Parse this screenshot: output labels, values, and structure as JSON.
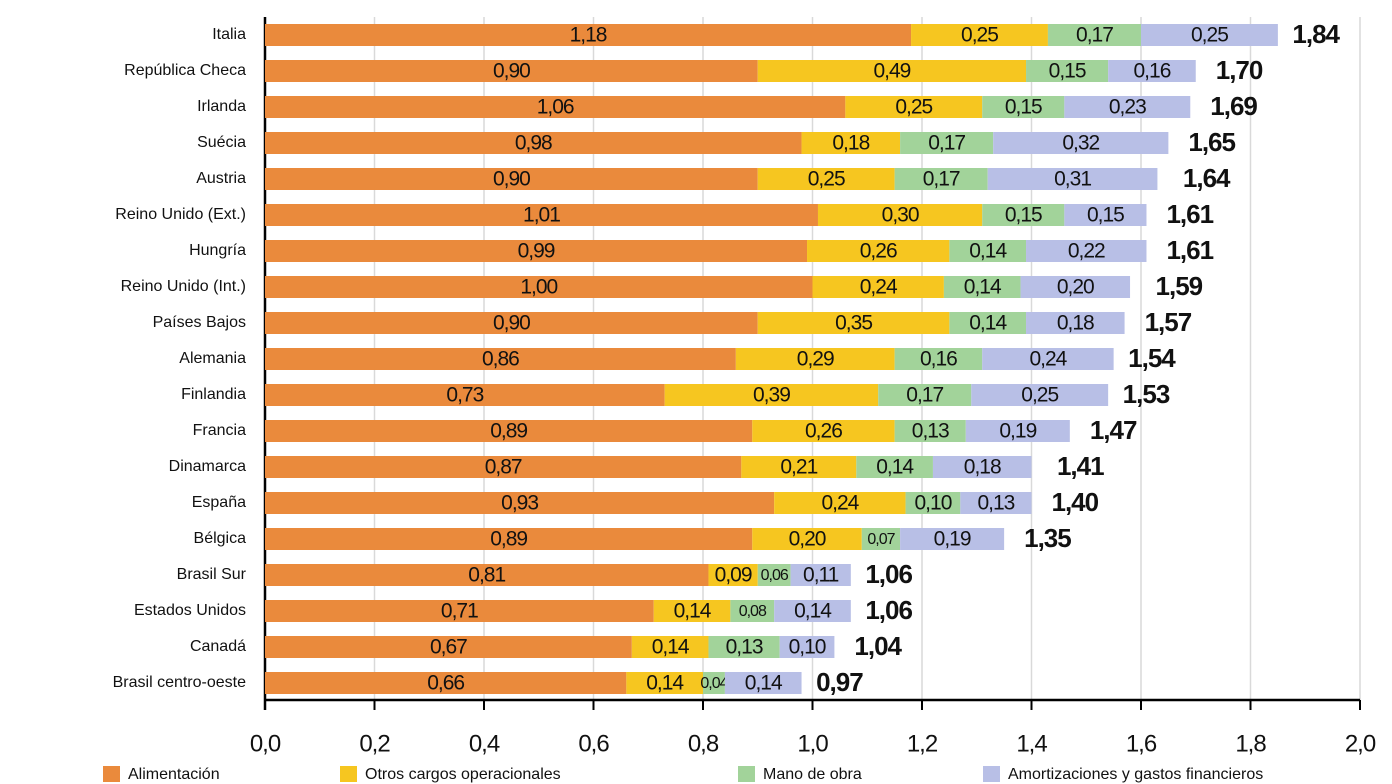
{
  "chart_data": {
    "type": "stacked-barh",
    "categories": [
      "Italia",
      "República Checa",
      "Irlanda",
      "Suécia",
      "Austria",
      "Reino Unido (Ext.)",
      "Hungría",
      "Reino Unido (Int.)",
      "Países Bajos",
      "Alemania",
      "Finlandia",
      "Francia",
      "Dinamarca",
      "España",
      "Bélgica",
      "Brasil Sur",
      "Estados Unidos",
      "Canadá",
      "Brasil centro-oeste"
    ],
    "series": [
      {
        "name": "Alimentación",
        "color": "#ea8a3c",
        "values": [
          1.18,
          0.9,
          1.06,
          0.98,
          0.9,
          1.01,
          0.99,
          1.0,
          0.9,
          0.86,
          0.73,
          0.89,
          0.87,
          0.93,
          0.89,
          0.81,
          0.71,
          0.67,
          0.66
        ],
        "value_labels": [
          "1,18",
          "0,90",
          "1,06",
          "0,98",
          "0,90",
          "1,01",
          "0,99",
          "1,00",
          "0,90",
          "0,86",
          "0,73",
          "0,89",
          "0,87",
          "0,93",
          "0,89",
          "0,81",
          "0,71",
          "0,67",
          "0,66"
        ]
      },
      {
        "name": "Otros cargos operacionales",
        "color": "#f6c620",
        "values": [
          0.25,
          0.49,
          0.25,
          0.18,
          0.25,
          0.3,
          0.26,
          0.24,
          0.35,
          0.29,
          0.39,
          0.26,
          0.21,
          0.24,
          0.2,
          0.09,
          0.14,
          0.14,
          0.14
        ],
        "value_labels": [
          "0,25",
          "0,49",
          "0,25",
          "0,18",
          "0,25",
          "0,30",
          "0,26",
          "0,24",
          "0,35",
          "0,29",
          "0,39",
          "0,26",
          "0,21",
          "0,24",
          "0,20",
          "0,09",
          "0,14",
          "0,14",
          "0,14"
        ]
      },
      {
        "name": "Mano de obra",
        "color": "#a2d39a",
        "values": [
          0.17,
          0.15,
          0.15,
          0.17,
          0.17,
          0.15,
          0.14,
          0.14,
          0.14,
          0.16,
          0.17,
          0.13,
          0.14,
          0.1,
          0.07,
          0.06,
          0.08,
          0.13,
          0.04
        ],
        "value_labels": [
          "0,17",
          "0,15",
          "0,15",
          "0,17",
          "0,17",
          "0,15",
          "0,14",
          "0,14",
          "0,14",
          "0,16",
          "0,17",
          "0,13",
          "0,14",
          "0,10",
          "0,07",
          "0,06",
          "0,08",
          "0,13",
          "0,04"
        ]
      },
      {
        "name": "Amortizaciones y gastos financieros",
        "color": "#b8bfe6",
        "values": [
          0.25,
          0.16,
          0.23,
          0.32,
          0.31,
          0.15,
          0.22,
          0.2,
          0.18,
          0.24,
          0.25,
          0.19,
          0.18,
          0.13,
          0.19,
          0.11,
          0.14,
          0.1,
          0.14
        ],
        "value_labels": [
          "0,25",
          "0,16",
          "0,23",
          "0,32",
          "0,31",
          "0,15",
          "0,22",
          "0,20",
          "0,18",
          "0,24",
          "0,25",
          "0,19",
          "0,18",
          "0,13",
          "0,19",
          "0,11",
          "0,14",
          "0,10",
          "0,14"
        ]
      }
    ],
    "totals": {
      "values": [
        1.84,
        1.7,
        1.69,
        1.65,
        1.64,
        1.61,
        1.61,
        1.59,
        1.57,
        1.54,
        1.53,
        1.47,
        1.41,
        1.4,
        1.35,
        1.06,
        1.06,
        1.04,
        0.97
      ],
      "value_labels": [
        "1,84",
        "1,70",
        "1,69",
        "1,65",
        "1,64",
        "1,61",
        "1,61",
        "1,59",
        "1,57",
        "1,54",
        "1,53",
        "1,47",
        "1,41",
        "1,40",
        "1,35",
        "1,06",
        "1,06",
        "1,04",
        "0,97"
      ]
    },
    "xlim": [
      0,
      2.0
    ],
    "xticks": [
      {
        "value": 0,
        "label": "0,0"
      },
      {
        "value": 0.2,
        "label": "0,2"
      },
      {
        "value": 0.4,
        "label": "0,4"
      },
      {
        "value": 0.6,
        "label": "0,6"
      },
      {
        "value": 0.8,
        "label": "0,8"
      },
      {
        "value": 1.0,
        "label": "1,0"
      },
      {
        "value": 1.2,
        "label": "1,2"
      },
      {
        "value": 1.4,
        "label": "1,4"
      },
      {
        "value": 1.6,
        "label": "1,6"
      },
      {
        "value": 1.8,
        "label": "1,8"
      },
      {
        "value": 2.0,
        "label": "2,0"
      }
    ],
    "grid": true
  }
}
